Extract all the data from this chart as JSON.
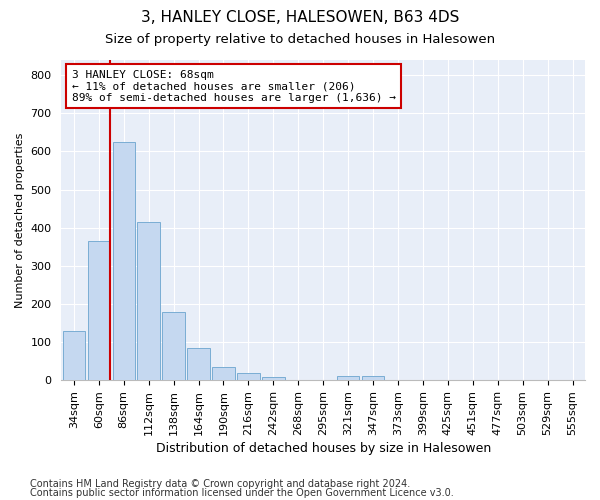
{
  "title": "3, HANLEY CLOSE, HALESOWEN, B63 4DS",
  "subtitle": "Size of property relative to detached houses in Halesowen",
  "xlabel": "Distribution of detached houses by size in Halesowen",
  "ylabel": "Number of detached properties",
  "bin_labels": [
    "34sqm",
    "60sqm",
    "86sqm",
    "112sqm",
    "138sqm",
    "164sqm",
    "190sqm",
    "216sqm",
    "242sqm",
    "268sqm",
    "295sqm",
    "321sqm",
    "347sqm",
    "373sqm",
    "399sqm",
    "425sqm",
    "451sqm",
    "477sqm",
    "503sqm",
    "529sqm",
    "555sqm"
  ],
  "bar_heights": [
    130,
    365,
    625,
    415,
    178,
    85,
    35,
    18,
    8,
    0,
    0,
    10,
    10,
    0,
    0,
    0,
    0,
    0,
    0,
    0,
    0
  ],
  "bar_color": "#c5d8f0",
  "bar_edge_color": "#7aadd4",
  "vline_color": "#cc0000",
  "annotation_text": "3 HANLEY CLOSE: 68sqm\n← 11% of detached houses are smaller (206)\n89% of semi-detached houses are larger (1,636) →",
  "annotation_box_facecolor": "#ffffff",
  "annotation_box_edgecolor": "#cc0000",
  "ylim": [
    0,
    840
  ],
  "yticks": [
    0,
    100,
    200,
    300,
    400,
    500,
    600,
    700,
    800
  ],
  "footer1": "Contains HM Land Registry data © Crown copyright and database right 2024.",
  "footer2": "Contains public sector information licensed under the Open Government Licence v3.0.",
  "fig_bg_color": "#ffffff",
  "plot_bg_color": "#e8eef8",
  "grid_color": "#ffffff",
  "title_fontsize": 11,
  "subtitle_fontsize": 9.5,
  "xlabel_fontsize": 9,
  "ylabel_fontsize": 8,
  "tick_fontsize": 8,
  "footer_fontsize": 7
}
